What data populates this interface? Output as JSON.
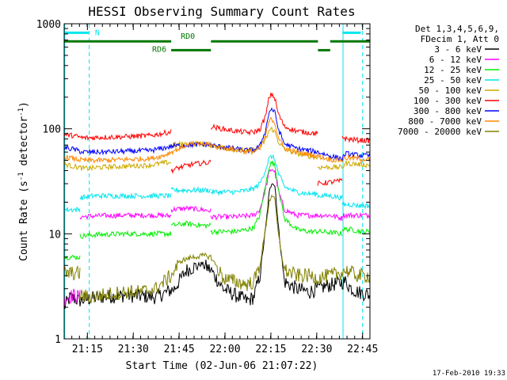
{
  "chart_data": {
    "type": "line",
    "title": "HESSI Observing Summary Count Rates",
    "xlabel": "Start Time (02-Jun-06 21:07:22)",
    "ylabel_main": "Count Rate (s",
    "ylabel_sup1": "-1",
    "ylabel_mid": " detector",
    "ylabel_sup2": "-1",
    "ylabel_end": ")",
    "yscale": "log",
    "ylim": [
      1,
      1000
    ],
    "xlim_minutes": [
      0,
      100
    ],
    "x_units": "minutes after 21:07:22",
    "x_ticks": [
      {
        "label": "21:15",
        "value": 7.6
      },
      {
        "label": "21:30",
        "value": 22.6
      },
      {
        "label": "21:45",
        "value": 37.6
      },
      {
        "label": "22:00",
        "value": 52.6
      },
      {
        "label": "22:15",
        "value": 67.6
      },
      {
        "label": "22:30",
        "value": 82.6
      },
      {
        "label": "22:45",
        "value": 97.6
      }
    ],
    "y_ticks": [
      {
        "label": "1",
        "value": 1
      },
      {
        "label": "10",
        "value": 10
      },
      {
        "label": "100",
        "value": 100
      },
      {
        "label": "1000",
        "value": 1000
      }
    ],
    "legend_header": [
      "Det 1,3,4,5,6,9,",
      "FDecim 1, Att 0"
    ],
    "legend_position": "right",
    "timestamp": "17-Feb-2010 19:33",
    "flags": [
      {
        "label": "N",
        "color": "#00e5ee",
        "level": 820,
        "segments": [
          [
            0,
            8
          ],
          [
            91,
            97
          ]
        ]
      },
      {
        "label": "RD0",
        "color": "#007700",
        "level": 680,
        "segments": [
          [
            0,
            35
          ],
          [
            48,
            83
          ],
          [
            87,
            100
          ]
        ]
      },
      {
        "label": "RD6",
        "color": "#007700",
        "level": 560,
        "segments": [
          [
            35,
            48
          ],
          [
            83,
            87
          ]
        ]
      }
    ],
    "vertical_markers": [
      {
        "value": 0.2,
        "color": "#00e5ee",
        "style": "solid"
      },
      {
        "value": 8.2,
        "color": "#00e5ee",
        "style": "dashed"
      },
      {
        "value": 91.2,
        "color": "#00e5ee",
        "style": "solid"
      },
      {
        "value": 97.6,
        "color": "#00e5ee",
        "style": "dashed"
      }
    ],
    "series": [
      {
        "name": "3 - 6 keV",
        "color": "#000000",
        "segments": [
          {
            "x": [
              0,
              2,
              5,
              8,
              12,
              20,
              30,
              36,
              40,
              45,
              48,
              52,
              56,
              60,
              62,
              64,
              66,
              67,
              68,
              69,
              70,
              72,
              76,
              80,
              83,
              86,
              90,
              92,
              94,
              96,
              98,
              100
            ],
            "y": [
              2.0,
              2.5,
              2.3,
              2.4,
              2.5,
              2.6,
              2.5,
              3.0,
              4.5,
              5.2,
              4.5,
              3.0,
              2.6,
              2.3,
              2.5,
              4,
              12,
              24,
              32,
              28,
              12,
              3.5,
              3,
              2.8,
              3.0,
              3.2,
              3.4,
              3.5,
              3.0,
              2.8,
              2.7,
              2.6
            ]
          }
        ]
      },
      {
        "name": "6 - 12 keV",
        "color": "#ff00ff",
        "segments": [
          {
            "x": [
              0,
              3,
              5.3
            ],
            "y": [
              2.4,
              2.6,
              2.5
            ]
          },
          {
            "x": [
              5.3,
              10,
              20,
              30,
              35
            ],
            "y": [
              14.5,
              14.8,
              15,
              15,
              14.8
            ]
          },
          {
            "x": [
              35,
              40,
              45,
              48
            ],
            "y": [
              17,
              17.5,
              17,
              16.5
            ]
          },
          {
            "x": [
              48,
              52,
              56,
              60,
              62,
              64,
              66,
              67,
              68,
              69,
              70,
              72,
              76,
              80,
              83
            ],
            "y": [
              14.5,
              14.5,
              14.5,
              14.8,
              15,
              17,
              28,
              38,
              42,
              38,
              26,
              17,
              15,
              15,
              15
            ]
          },
          {
            "x": [
              83,
              87,
              91
            ],
            "y": [
              15,
              15,
              14
            ]
          },
          {
            "x": [
              91,
              94,
              97,
              100
            ],
            "y": [
              15,
              15,
              15,
              15
            ]
          }
        ]
      },
      {
        "name": "12 - 25 keV",
        "color": "#00ee00",
        "segments": [
          {
            "x": [
              0,
              3,
              5.3
            ],
            "y": [
              6,
              6,
              6
            ]
          },
          {
            "x": [
              5.3,
              10,
              20,
              30,
              35
            ],
            "y": [
              9.5,
              9.8,
              10,
              10,
              10
            ]
          },
          {
            "x": [
              35,
              40,
              45,
              48
            ],
            "y": [
              12,
              12.5,
              12,
              12
            ]
          },
          {
            "x": [
              48,
              52,
              56,
              60,
              62,
              64,
              66,
              67,
              68,
              69,
              70,
              72,
              76,
              80,
              83
            ],
            "y": [
              10.5,
              10.5,
              10.5,
              11,
              11.5,
              15,
              30,
              44,
              48,
              44,
              28,
              14,
              11,
              10.5,
              10.5
            ]
          },
          {
            "x": [
              83,
              87,
              91
            ],
            "y": [
              10.5,
              10.3,
              10
            ]
          },
          {
            "x": [
              91,
              94,
              97,
              100
            ],
            "y": [
              11,
              11,
              10.5,
              10.5
            ]
          }
        ]
      },
      {
        "name": "25 - 50 keV",
        "color": "#00e5ee",
        "segments": [
          {
            "x": [
              0,
              3,
              5.3
            ],
            "y": [
              17,
              17,
              17
            ]
          },
          {
            "x": [
              5.3,
              10,
              20,
              30,
              35
            ],
            "y": [
              22,
              23,
              23,
              23,
              23
            ]
          },
          {
            "x": [
              35,
              40,
              45,
              48
            ],
            "y": [
              26,
              26,
              26,
              26
            ]
          },
          {
            "x": [
              48,
              52,
              56,
              60,
              62,
              64,
              66,
              67,
              68,
              69,
              70,
              72,
              76,
              80,
              83
            ],
            "y": [
              25,
              25,
              25,
              26,
              27,
              30,
              42,
              52,
              55,
              50,
              38,
              28,
              25,
              24,
              24
            ]
          },
          {
            "x": [
              83,
              87,
              91
            ],
            "y": [
              23,
              23,
              22
            ]
          },
          {
            "x": [
              91,
              94,
              97,
              100
            ],
            "y": [
              19,
              19,
              18.5,
              18.5
            ]
          }
        ]
      },
      {
        "name": "50 - 100 keV",
        "color": "#ccaa00",
        "segments": [
          {
            "x": [
              0,
              3,
              6,
              8,
              12,
              20,
              28,
              32,
              35
            ],
            "y": [
              46,
              44,
              42,
              42,
              43,
              44,
              45,
              47,
              48
            ]
          },
          {
            "x": [
              35,
              40,
              45,
              48,
              50,
              55,
              60,
              62,
              64,
              66,
              67,
              68,
              69,
              70,
              72,
              76,
              80,
              83
            ],
            "y": [
              70,
              72,
              72,
              70,
              68,
              64,
              62,
              63,
              66,
              80,
              96,
              100,
              92,
              76,
              64,
              58,
              55,
              53
            ]
          },
          {
            "x": [
              83,
              87,
              91,
              92,
              96,
              100
            ],
            "y": [
              43,
              43,
              43,
              47,
              46,
              45
            ]
          }
        ]
      },
      {
        "name": "100 - 300 keV",
        "color": "#ff0000",
        "segments": [
          {
            "x": [
              0,
              3,
              6,
              8,
              12,
              20,
              28,
              32,
              35
            ],
            "y": [
              88,
              86,
              82,
              82,
              83,
              84,
              86,
              90,
              94
            ]
          },
          {
            "x": [
              35,
              38,
              42,
              45,
              48
            ],
            "y": [
              40,
              43,
              46,
              47,
              48
            ]
          },
          {
            "x": [
              48,
              50,
              55,
              60,
              62,
              64,
              66,
              67,
              68,
              69,
              70,
              72,
              76,
              80,
              83
            ],
            "y": [
              105,
              102,
              96,
              92,
              93,
              98,
              135,
              200,
              215,
              190,
              140,
              105,
              95,
              92,
              90
            ]
          },
          {
            "x": [
              83,
              87,
              91
            ],
            "y": [
              30,
              31,
              32
            ]
          },
          {
            "x": [
              91,
              92,
              96,
              100
            ],
            "y": [
              85,
              80,
              78,
              77
            ]
          }
        ]
      },
      {
        "name": "300 - 800 keV",
        "color": "#0000ff",
        "segments": [
          {
            "x": [
              0,
              3,
              6,
              8,
              12,
              20,
              28,
              32,
              35,
              40,
              45,
              48,
              50,
              55,
              60,
              62,
              64,
              66,
              67,
              68,
              69,
              70,
              72,
              76,
              80,
              83,
              87,
              91,
              92,
              96,
              100
            ],
            "y": [
              66,
              64,
              60,
              60,
              60,
              61,
              62,
              65,
              68,
              70,
              71,
              70,
              68,
              65,
              62,
              63,
              68,
              100,
              145,
              155,
              140,
              100,
              72,
              65,
              62,
              60,
              55,
              52,
              58,
              56,
              55
            ]
          }
        ]
      },
      {
        "name": "800 - 7000 keV",
        "color": "#ff8800",
        "segments": [
          {
            "x": [
              0,
              3,
              6,
              8,
              12,
              20,
              28,
              32,
              35,
              40,
              45,
              48,
              50,
              55,
              60,
              62,
              64,
              66,
              67,
              68,
              69,
              70,
              72,
              76,
              80,
              83,
              87,
              91,
              92,
              96,
              100
            ],
            "y": [
              54,
              52,
              50,
              50,
              50,
              51,
              52,
              55,
              60,
              70,
              72,
              70,
              67,
              64,
              60,
              61,
              64,
              88,
              118,
              124,
              112,
              84,
              65,
              60,
              57,
              55,
              51,
              50,
              53,
              52,
              51
            ]
          }
        ]
      },
      {
        "name": "7000 - 20000 keV",
        "color": "#808000",
        "segments": [
          {
            "x": [
              0,
              3,
              5.3
            ],
            "y": [
              4.2,
              4.2,
              4.2
            ]
          },
          {
            "x": [
              5.3,
              8,
              12,
              16,
              20,
              25,
              30,
              35,
              38,
              42,
              46,
              48,
              52,
              56,
              60,
              62,
              64,
              66,
              67,
              68,
              69,
              70,
              72,
              76,
              80,
              83,
              87,
              90,
              92,
              96,
              100
            ],
            "y": [
              2.6,
              2.5,
              2.6,
              2.7,
              2.8,
              2.8,
              3,
              4,
              5.5,
              6,
              6.2,
              6,
              3.8,
              3.5,
              3.3,
              3.5,
              5,
              12,
              20,
              24,
              20,
              10,
              4.5,
              4,
              4,
              3.8,
              4,
              4.2,
              4.5,
              4,
              4
            ]
          }
        ]
      }
    ]
  }
}
